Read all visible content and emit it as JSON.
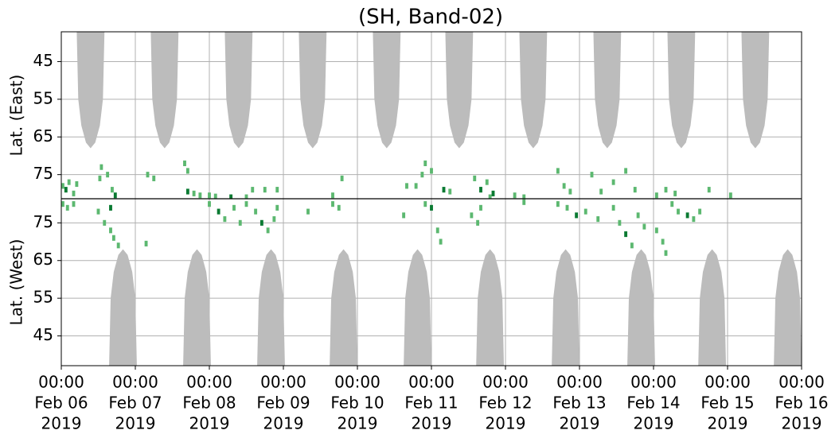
{
  "chart_data": [
    {
      "type": "area",
      "title": "(SH, Band-02)",
      "ylabel": "Lat. (East)",
      "xlim": [
        0,
        240
      ],
      "ylim": [
        81.4,
        37.1
      ],
      "yticks": [
        45,
        55,
        65,
        75
      ],
      "grid": true,
      "series": [
        {
          "type": "area",
          "color": "#bcbcbc",
          "x": [
            5,
            5.5,
            6.5,
            8,
            9.5,
            11,
            12.5,
            13.5,
            14
          ],
          "values": [
            37,
            55,
            62,
            66.5,
            68,
            66.5,
            62,
            55,
            37
          ]
        },
        {
          "type": "area",
          "color": "#bcbcbc",
          "x": [
            29,
            29.5,
            30.5,
            32,
            33.5,
            35,
            36.5,
            37.5,
            38
          ],
          "values": [
            37,
            55,
            62,
            66.5,
            68,
            66.5,
            62,
            55,
            37
          ]
        },
        {
          "type": "area",
          "color": "#bcbcbc",
          "x": [
            53,
            53.5,
            54.5,
            56,
            57.5,
            59,
            60.5,
            61.5,
            62
          ],
          "values": [
            37,
            55,
            62,
            66.5,
            68,
            66.5,
            62,
            55,
            37
          ]
        },
        {
          "type": "area",
          "color": "#bcbcbc",
          "x": [
            77,
            77.5,
            78.5,
            80,
            81.5,
            83,
            84.5,
            85.5,
            86
          ],
          "values": [
            37,
            55,
            62,
            66.5,
            68,
            66.5,
            62,
            55,
            37
          ]
        },
        {
          "type": "area",
          "color": "#bcbcbc",
          "x": [
            101,
            101.5,
            102.5,
            104,
            105.5,
            107,
            108.5,
            109.5,
            110
          ],
          "values": [
            37,
            55,
            62,
            66.5,
            68,
            66.5,
            62,
            55,
            37
          ]
        },
        {
          "type": "area",
          "color": "#bcbcbc",
          "x": [
            124.5,
            125,
            126,
            127.5,
            129,
            130.5,
            132,
            133,
            133.5
          ],
          "values": [
            37,
            55,
            62,
            66.5,
            68,
            66.5,
            62,
            55,
            37
          ]
        },
        {
          "type": "area",
          "color": "#bcbcbc",
          "x": [
            148.5,
            149,
            150,
            151.5,
            153,
            154.5,
            156,
            157,
            157.5
          ],
          "values": [
            37,
            55,
            62,
            66.5,
            68,
            66.5,
            62,
            55,
            37
          ]
        },
        {
          "type": "area",
          "color": "#bcbcbc",
          "x": [
            172.5,
            173,
            174,
            175.5,
            177,
            178.5,
            180,
            181,
            181.5
          ],
          "values": [
            37,
            55,
            62,
            66.5,
            68,
            66.5,
            62,
            55,
            37
          ]
        },
        {
          "type": "area",
          "color": "#bcbcbc",
          "x": [
            196.5,
            197,
            198,
            199.5,
            201,
            202.5,
            204,
            205,
            205.5
          ],
          "values": [
            37,
            55,
            62,
            66.5,
            68,
            66.5,
            62,
            55,
            37
          ]
        },
        {
          "type": "area",
          "color": "#bcbcbc",
          "x": [
            220.5,
            221,
            222,
            223.5,
            225,
            226.5,
            228,
            229,
            229.5
          ],
          "values": [
            37,
            55,
            62,
            66.5,
            68,
            66.5,
            62,
            55,
            37
          ]
        },
        {
          "type": "scatter",
          "color": "#5cb870",
          "x": [
            0.5,
            2.5,
            4,
            5,
            12.5,
            13,
            15,
            16.5,
            28,
            30,
            40,
            41,
            43,
            45,
            48,
            50,
            60,
            62,
            66,
            70,
            88,
            91,
            112,
            115,
            118,
            120,
            117,
            126,
            134,
            138,
            139,
            147,
            150,
            161,
            163,
            165,
            172,
            175,
            179,
            183,
            186,
            193,
            196,
            199,
            210,
            217
          ],
          "values": [
            78,
            77,
            80,
            77.5,
            76,
            73,
            75,
            79,
            75,
            76,
            72,
            74,
            80,
            80.5,
            80.5,
            80.8,
            81,
            79,
            79,
            79,
            80.5,
            76,
            78,
            78,
            72,
            74,
            75,
            79.5,
            76,
            77,
            81,
            80.5,
            81,
            74,
            78,
            79.5,
            75,
            79.5,
            77,
            74,
            79,
            80.5,
            79,
            80,
            79,
            80.5
          ]
        },
        {
          "type": "scatter",
          "color": "#0a7a32",
          "x": [
            1.5,
            17.5,
            41,
            55,
            124,
            136,
            140
          ],
          "values": [
            79,
            80.5,
            79.5,
            81,
            79,
            79,
            80
          ]
        }
      ]
    },
    {
      "type": "area",
      "ylabel": "Lat. (West)",
      "xlim": [
        0,
        240
      ],
      "ylim": [
        37.1,
        81.4
      ],
      "yticks": [
        45,
        55,
        65,
        75
      ],
      "grid": true,
      "xticks": [
        {
          "value": 0,
          "label": [
            "00:00",
            "Feb 06",
            "2019"
          ]
        },
        {
          "value": 24,
          "label": [
            "00:00",
            "Feb 07",
            "2019"
          ]
        },
        {
          "value": 48,
          "label": [
            "00:00",
            "Feb 08",
            "2019"
          ]
        },
        {
          "value": 72,
          "label": [
            "00:00",
            "Feb 09",
            "2019"
          ]
        },
        {
          "value": 96,
          "label": [
            "00:00",
            "Feb 10",
            "2019"
          ]
        },
        {
          "value": 120,
          "label": [
            "00:00",
            "Feb 11",
            "2019"
          ]
        },
        {
          "value": 144,
          "label": [
            "00:00",
            "Feb 12",
            "2019"
          ]
        },
        {
          "value": 168,
          "label": [
            "00:00",
            "Feb 13",
            "2019"
          ]
        },
        {
          "value": 192,
          "label": [
            "00:00",
            "Feb 14",
            "2019"
          ]
        },
        {
          "value": 216,
          "label": [
            "00:00",
            "Feb 15",
            "2019"
          ]
        },
        {
          "value": 240,
          "label": [
            "00:00",
            "Feb 16",
            "2019"
          ]
        }
      ],
      "series": [
        {
          "type": "area",
          "color": "#bcbcbc",
          "x": [
            15.5,
            16,
            17,
            18.5,
            20,
            21.5,
            23,
            24,
            24.5
          ],
          "values": [
            37,
            55,
            62,
            66.5,
            68,
            66.5,
            62,
            55,
            37
          ]
        },
        {
          "type": "area",
          "color": "#bcbcbc",
          "x": [
            39.5,
            40,
            41,
            42.5,
            44,
            45.5,
            47,
            48,
            48.5
          ],
          "values": [
            37,
            55,
            62,
            66.5,
            68,
            66.5,
            62,
            55,
            37
          ]
        },
        {
          "type": "area",
          "color": "#bcbcbc",
          "x": [
            63.5,
            64,
            65,
            66.5,
            68,
            69.5,
            71,
            72,
            72.5
          ],
          "values": [
            37,
            55,
            62,
            66.5,
            68,
            66.5,
            62,
            55,
            37
          ]
        },
        {
          "type": "area",
          "color": "#bcbcbc",
          "x": [
            87,
            87.5,
            88.5,
            90,
            91.5,
            93,
            94.5,
            95.5,
            96
          ],
          "values": [
            37,
            55,
            62,
            66.5,
            68,
            66.5,
            62,
            55,
            37
          ]
        },
        {
          "type": "area",
          "color": "#bcbcbc",
          "x": [
            111,
            111.5,
            112.5,
            114,
            115.5,
            117,
            118.5,
            119.5,
            120
          ],
          "values": [
            37,
            55,
            62,
            66.5,
            68,
            66.5,
            62,
            55,
            37
          ]
        },
        {
          "type": "area",
          "color": "#bcbcbc",
          "x": [
            134.5,
            135,
            136,
            137.5,
            139,
            140.5,
            142,
            143,
            143.5
          ],
          "values": [
            37,
            55,
            62,
            66.5,
            68,
            66.5,
            62,
            55,
            37
          ]
        },
        {
          "type": "area",
          "color": "#bcbcbc",
          "x": [
            159,
            159.5,
            160.5,
            162,
            163.5,
            165,
            166.5,
            167.5,
            168
          ],
          "values": [
            37,
            55,
            62,
            66.5,
            68,
            66.5,
            62,
            55,
            37
          ]
        },
        {
          "type": "area",
          "color": "#bcbcbc",
          "x": [
            183.5,
            184,
            185,
            186.5,
            188,
            189.5,
            191,
            192,
            192.5
          ],
          "values": [
            37,
            55,
            62,
            66.5,
            68,
            66.5,
            62,
            55,
            37
          ]
        },
        {
          "type": "area",
          "color": "#bcbcbc",
          "x": [
            206.5,
            207,
            208,
            209.5,
            211,
            212.5,
            214,
            215,
            215.5
          ],
          "values": [
            37,
            55,
            62,
            66.5,
            68,
            66.5,
            62,
            55,
            37
          ]
        },
        {
          "type": "area",
          "color": "#bcbcbc",
          "x": [
            231,
            231.5,
            232.5,
            234,
            235.5,
            237,
            238.5,
            239.5,
            240
          ],
          "values": [
            37,
            55,
            62,
            66.5,
            68,
            66.5,
            62,
            55,
            37
          ]
        },
        {
          "type": "scatter",
          "color": "#5cb870",
          "x": [
            0.5,
            2,
            4,
            12,
            14,
            16,
            17,
            18.5,
            27.5,
            48,
            53,
            56,
            60,
            58,
            63,
            67,
            69,
            70,
            80,
            88,
            90,
            111,
            118,
            122,
            123,
            133,
            135,
            136,
            150,
            161,
            164,
            170,
            174,
            179,
            181,
            185,
            187,
            189,
            193,
            195,
            196,
            198,
            200,
            205,
            207
          ],
          "values": [
            80,
            79,
            80,
            78,
            75,
            73,
            71,
            69,
            69.5,
            80,
            76,
            79,
            80,
            75,
            78,
            73,
            76,
            79,
            78,
            80,
            79,
            77,
            80,
            73,
            70,
            77,
            75,
            79,
            80.5,
            80,
            79,
            78,
            76,
            79,
            75,
            69,
            77,
            74,
            73,
            70,
            67,
            80,
            78,
            76,
            78
          ]
        },
        {
          "type": "scatter",
          "color": "#0a7a32",
          "x": [
            16,
            51,
            65,
            120,
            167,
            183,
            203
          ],
          "values": [
            79,
            78,
            75,
            79,
            77,
            72,
            77
          ]
        }
      ]
    }
  ]
}
